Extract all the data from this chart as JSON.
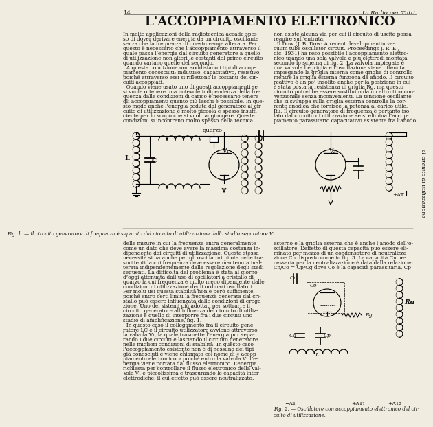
{
  "page_number": "14",
  "header_right": "La Radio per Tutti.",
  "title": "L'ACCOPPIAMENTO ELETTRONICO",
  "background_color": "#f0ece0",
  "text_color": "#1a1a1a",
  "fig1_caption": "Fig. 1. — Il circuito generatore di frequenza è separato dal circuito di utilizzazione dallo stadio separatore V₁.",
  "fig2_caption": "Fig. 2. — Oscillatore con accoppiamento elettronico del cir-\ncuito di utilizzazione.",
  "left_col_upper": [
    "In molte applicazioni della radiotecnica accade spes-",
    "so di dover derivare energia da un circuito oscillante",
    "senza che la frequenza di questo venga alterata. Per",
    "questo è necessario che l’accoppiamento attraverso il",
    "quale passa l’energia dal circuito generatore a quello",
    "di utilizzazione non alteri le costanti del primo circuito",
    "quando variano quelle del secondo.",
    "  A questa condizione non soddisfano i tipi di accop-",
    "piamento conosciuti: induttivo, capacitativo, resistivo,",
    "poiché attraverso essi si riflettono le costanti dei cir-",
    "cuiti accoppiati.",
    "  Quando viene usato uno di questi accoppiamenti se",
    "si vuole ottenere una notevole indipendenza della fre-",
    "quenza dalle condizioni di carico è necessario tenere",
    "gli accoppiamenti quanto più laschi è possibile. In que-",
    "sto modo anche l’energia ceduta dal generatore al cir-",
    "cuito di utilizzazione è molto piccola e spesso insuffi-",
    "ciente per lo scopo che si vuol raggiungere. Queste",
    "condizioni si incontrano molto spesso nella tecnica"
  ],
  "right_col_upper": [
    "non esiste alcuna via per cui il circuito di uscita possa",
    "reagire sull’entrata.",
    "  Il Dow (J. B. Dow: A recent developmentin va-",
    "cuum tube oscillator circuit. Proceedings J. R. E.,",
    "dic. 1931) ha reso possibile l’accoppiamento elettro-",
    "nico usando una sola valvola a più elettrodi montata",
    "secondo lo schema di fig. 2. La valvola impiegata è",
    "una valvola bégriglia e l’oscillazione viene ottenuta",
    "impiegando la griglia interna come griglia di controllo",
    "mentre la griglia esterna funziona da anodo. Il circuito",
    "reattivo è un po’ insolito anche per la posizione in cui",
    "è stata posta la resistenza di griglia Rg, ma questo",
    "circuito potrebbe essere sostituito da un altro tipo con-",
    "venzionale senza inconvenienti. La tensione oscillante",
    "che si sviluppa sulla griglia esterna controlla la cor-",
    "rente anodica che fornisce la potenza al carico utile,",
    "Ru. Il circuito generatore di frequenza è pertanto iso-",
    "lato dal circuito di utilizzazione se si elimina l’accop-",
    "piamento parassitario capacitativo esistente fra l’anodo"
  ],
  "left_col_lower": [
    "delle misure in cui la frequenza entra generalmente",
    "come un dato che deve avere la massima costanza in-",
    "dipendente dai circuiti di utilizzazione. Questa stessa",
    "necessità si ha anche per gli oscillatori pilota nelle tra-",
    "smittenti la cui frequenza deve essere mantenuta inal-",
    "terata indipendentemente dalla regolazione degli stadi",
    "seguenti. La difficoltà del problema è stata al giorno",
    "d’oggi attenuata dall’uso di oscillatori a cristallo di",
    "quarzo la cui frequenza è molto meno dipendente dalle",
    "condizioni di utilizzazione degli ordinari oscillatori.",
    "Per molti usi questa stabilità non è però sufficiente,",
    "poiché entro certi limiti la frequenza generata dal cri-",
    "stallo può essere influenzata dalle condizioni di eroga-",
    "zione. Uno dei sistemi più adottati per sottrarre il",
    "circuito generatore all’influenza del circuito di utiliz-",
    "zazione è quello di interporre fra i due circuiti uno",
    "stadio di amplificazione, fig. 1.",
    "  In questo caso il collegamento fra il circuito gene-",
    "ratore LC e il circuito utilizzatore avviene attraverso",
    "la valvola V₁, la quale trasmette l’energia pur sepa-",
    "rando i due circuiti e lasciando il circuito generatore",
    "nelle migliori condizioni di stabilità. In questo caso",
    "l’accoppiamento esistente non è di nessuno dei tipi",
    "già conosciuti e viene chiamato col nome di « accop-",
    "piamento elettronico » poiché entro la valvola V₁ l’e-",
    "nergia viene portata dal flusso elettronico. L’energia",
    "richiesta per controllare il flusso elettronico della val-",
    "vola V₁ è piccolissima e trascurando le capacità inter-",
    "elettrodiche, il cui effetto può essere neutralizzato,"
  ],
  "right_col_lower": [
    "esterno e la griglia esterna che è anche l’anodo dell’o-",
    "scillatore. L’effetto di questa capacità può essere eli-",
    "minato per mezzo di un condensatore di neutralizza-",
    "zione Cn disposto come in fig. 3. La capacità Cn ne-",
    "cessaria per la neutralizzazione è data dalla relazione:",
    "Cn/Co = Cp/Cg dove Co è la capacità parassitaria, Cp"
  ]
}
